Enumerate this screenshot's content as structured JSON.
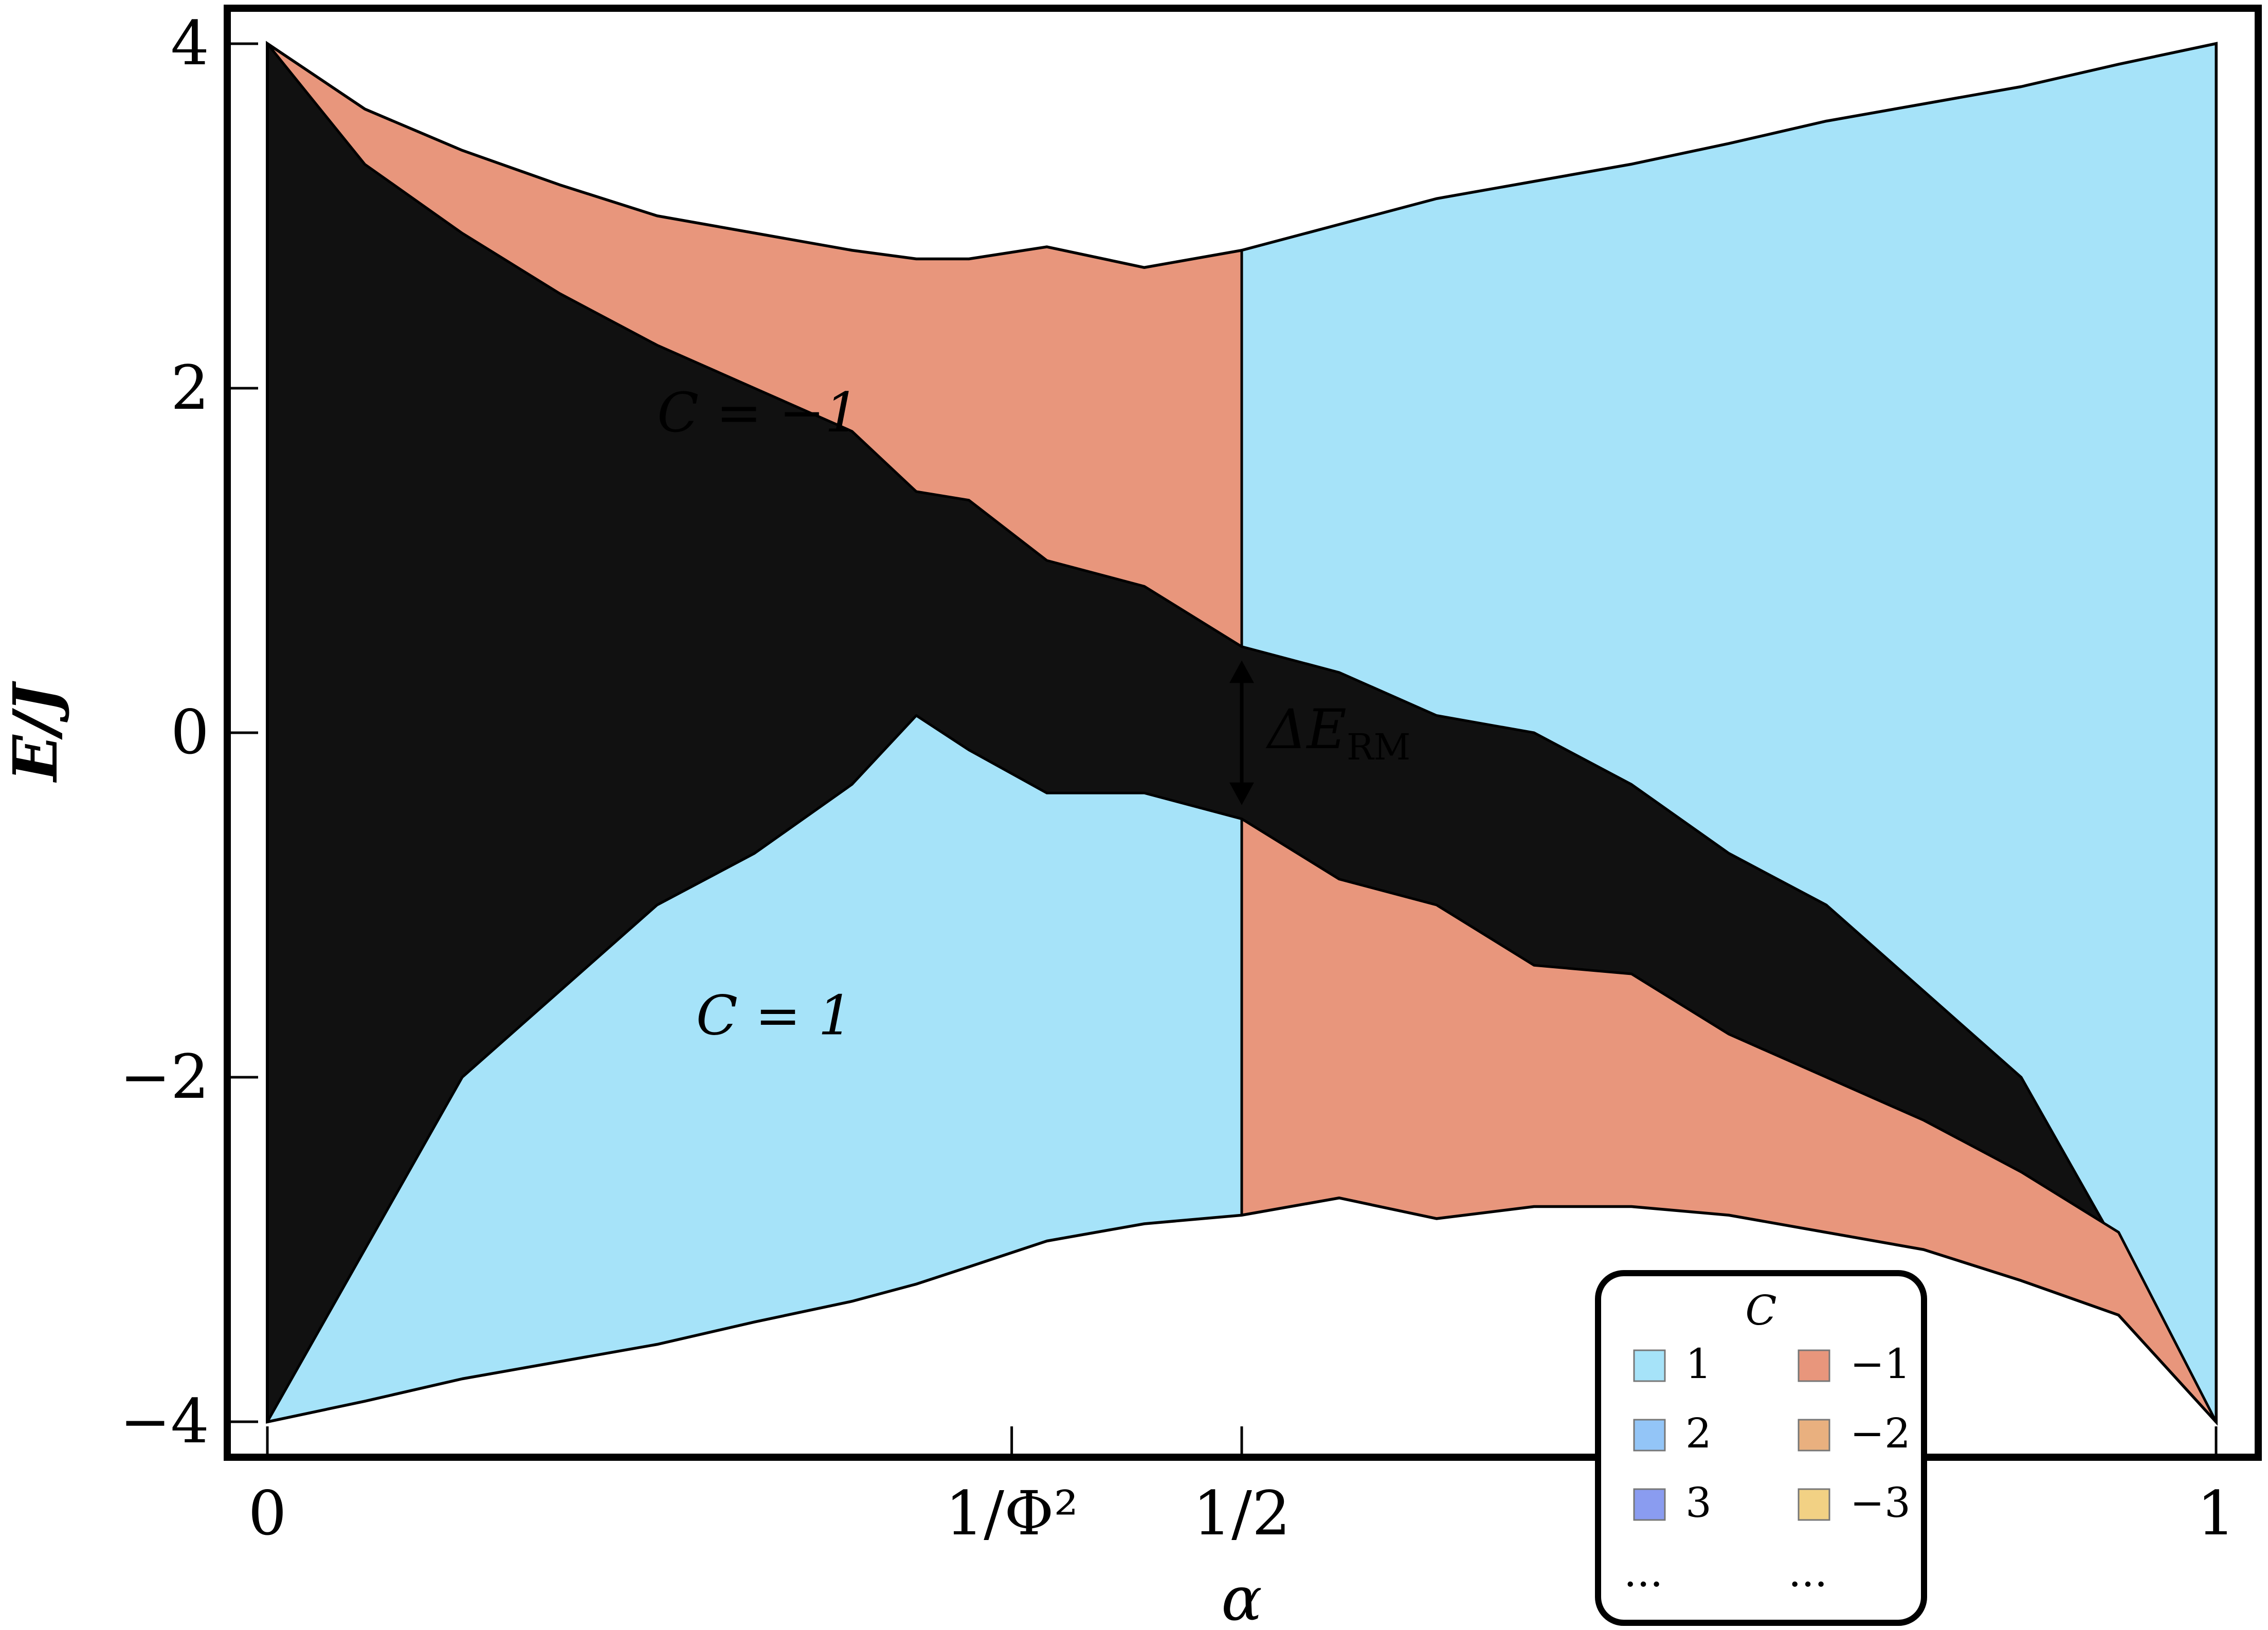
{
  "chart_data": {
    "type": "area",
    "xlabel": "α",
    "ylabel": "E/J",
    "xlim": [
      0,
      1
    ],
    "ylim": [
      -4.2,
      4.2
    ],
    "x_ticks": [
      {
        "value": 0,
        "label": "0"
      },
      {
        "value": 0.381966,
        "label": "1/Φ²"
      },
      {
        "value": 0.5,
        "label": "1/2"
      },
      {
        "value": 1,
        "label": "1"
      }
    ],
    "y_ticks": [
      {
        "value": 4,
        "label": "4"
      },
      {
        "value": 2,
        "label": "2"
      },
      {
        "value": 0,
        "label": "0"
      },
      {
        "value": -2,
        "label": "−2"
      },
      {
        "value": -4,
        "label": "−4"
      }
    ],
    "bands": [
      {
        "name": "C = −1 upper",
        "chern": -1,
        "color": "#e8967c",
        "x": [
          0,
          0.05,
          0.1,
          0.15,
          0.2,
          0.25,
          0.3,
          0.333,
          0.36,
          0.4,
          0.45,
          0.5
        ],
        "upper": [
          4.0,
          3.62,
          3.38,
          3.18,
          3.0,
          2.9,
          2.8,
          2.75,
          2.75,
          2.82,
          2.7,
          2.8
        ],
        "lower": [
          4.0,
          3.3,
          2.9,
          2.55,
          2.25,
          2.0,
          1.75,
          1.4,
          1.35,
          1.0,
          0.85,
          0.5
        ]
      },
      {
        "name": "C = 1 upper",
        "chern": 1,
        "color": "#a6e3f9",
        "x": [
          0.5,
          0.55,
          0.6,
          0.65,
          0.7,
          0.75,
          0.8,
          0.85,
          0.9,
          0.95,
          1.0
        ],
        "upper": [
          2.8,
          2.95,
          3.1,
          3.2,
          3.3,
          3.42,
          3.55,
          3.65,
          3.75,
          3.88,
          4.0
        ],
        "lower": [
          0.5,
          0.35,
          0.1,
          0.0,
          -0.3,
          -0.7,
          -1.0,
          -1.5,
          -2.0,
          -3.0,
          -4.0
        ]
      },
      {
        "name": "C = 1 lower",
        "chern": 1,
        "color": "#a6e3f9",
        "x": [
          0,
          0.05,
          0.1,
          0.15,
          0.2,
          0.25,
          0.3,
          0.333,
          0.36,
          0.4,
          0.45,
          0.5
        ],
        "upper": [
          -4.0,
          -3.0,
          -2.0,
          -1.5,
          -1.0,
          -0.7,
          -0.3,
          0.1,
          -0.1,
          -0.35,
          -0.35,
          -0.5
        ],
        "lower": [
          -4.0,
          -3.88,
          -3.75,
          -3.65,
          -3.55,
          -3.42,
          -3.3,
          -3.2,
          -3.1,
          -2.95,
          -2.85,
          -2.8
        ]
      },
      {
        "name": "C = −1 lower",
        "chern": -1,
        "color": "#e8967c",
        "x": [
          0.5,
          0.55,
          0.6,
          0.65,
          0.7,
          0.75,
          0.8,
          0.85,
          0.9,
          0.95,
          1.0
        ],
        "upper": [
          -0.5,
          -0.85,
          -1.0,
          -1.35,
          -1.4,
          -1.75,
          -2.0,
          -2.25,
          -2.55,
          -2.9,
          -4.0
        ],
        "lower": [
          -2.8,
          -2.7,
          -2.82,
          -2.75,
          -2.75,
          -2.8,
          -2.9,
          -3.0,
          -3.18,
          -3.38,
          -4.0
        ]
      }
    ],
    "annotations": [
      {
        "text": "C = −1",
        "x": 0.2,
        "y": 1.75
      },
      {
        "text": "C = 1",
        "x": 0.22,
        "y": -1.75
      },
      {
        "text": "ΔE",
        "subscript": "RM",
        "x": 0.5,
        "y": 0
      }
    ],
    "legend": {
      "title": "C",
      "position": "bottom-right",
      "columns": [
        [
          {
            "label": "1",
            "color": "#a6e3f9"
          },
          {
            "label": "2",
            "color": "#93c5f7"
          },
          {
            "label": "3",
            "color": "#8a9cf0"
          },
          {
            "label": "...",
            "color": ""
          }
        ],
        [
          {
            "label": "−1",
            "color": "#e8967c"
          },
          {
            "label": "−2",
            "color": "#e9b07f"
          },
          {
            "label": "−3",
            "color": "#f2d184"
          },
          {
            "label": "...",
            "color": ""
          }
        ]
      ]
    }
  }
}
